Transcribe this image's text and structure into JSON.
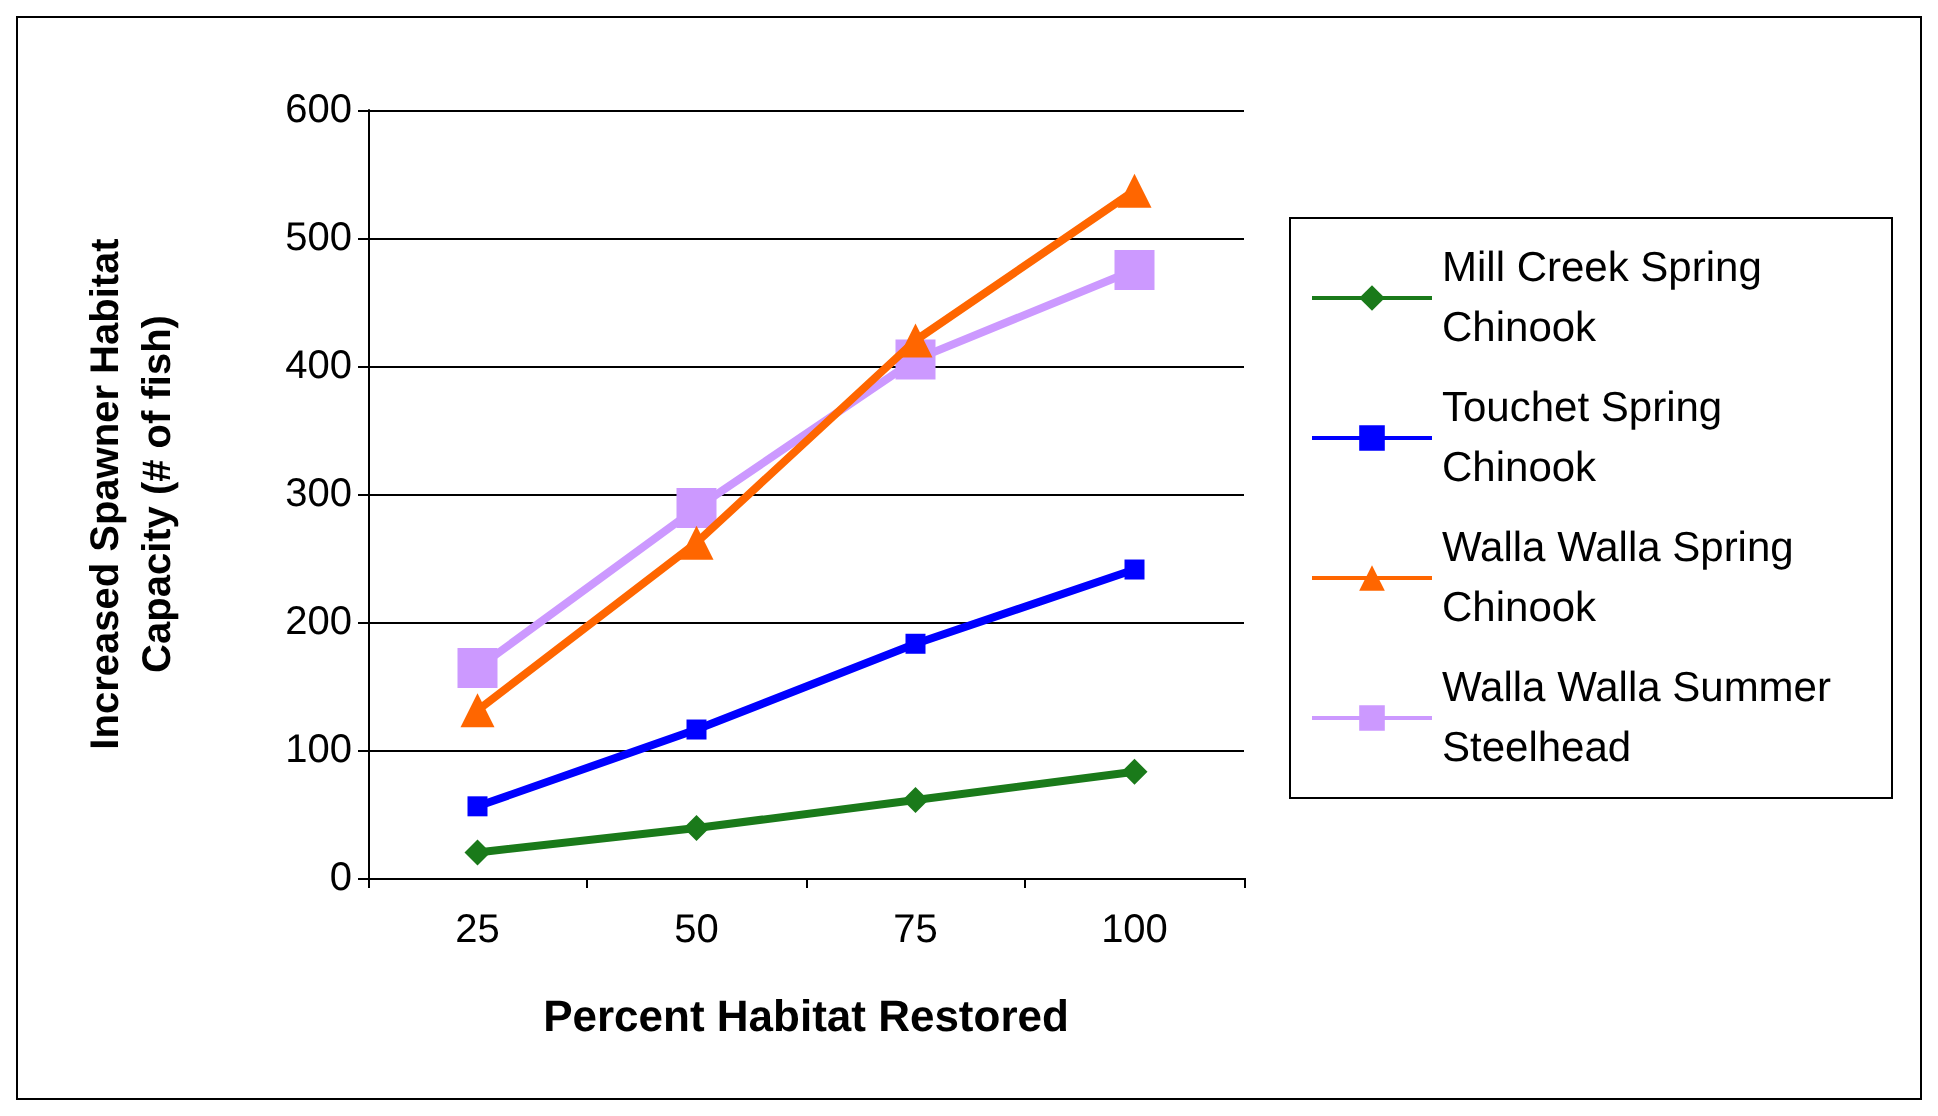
{
  "chart_data": {
    "type": "line",
    "xlabel": "Percent Habitat Restored",
    "ylabel": "Increased Spawner Habitat\nCapacity (# of fish)",
    "categories": [
      "25",
      "50",
      "75",
      "100"
    ],
    "series": [
      {
        "name": "Mill Creek Spring Chinook",
        "color": "#1a7a1a",
        "marker": "diamond",
        "values": [
          20,
          39,
          61,
          83
        ]
      },
      {
        "name": "Touchet Spring Chinook",
        "color": "#0000ff",
        "marker": "square",
        "values": [
          56,
          116,
          183,
          241
        ]
      },
      {
        "name": "Walla Walla Spring Chinook",
        "color": "#ff6600",
        "marker": "triangle",
        "values": [
          131,
          262,
          420,
          537
        ]
      },
      {
        "name": "Walla Walla Summer Steelhead",
        "color": "#cc99ff",
        "marker": "square",
        "values": [
          164,
          289,
          405,
          475
        ]
      }
    ],
    "ylim": [
      0,
      600
    ],
    "yticks": [
      0,
      100,
      200,
      300,
      400,
      500,
      600
    ],
    "grid": "y",
    "legend": "right"
  }
}
